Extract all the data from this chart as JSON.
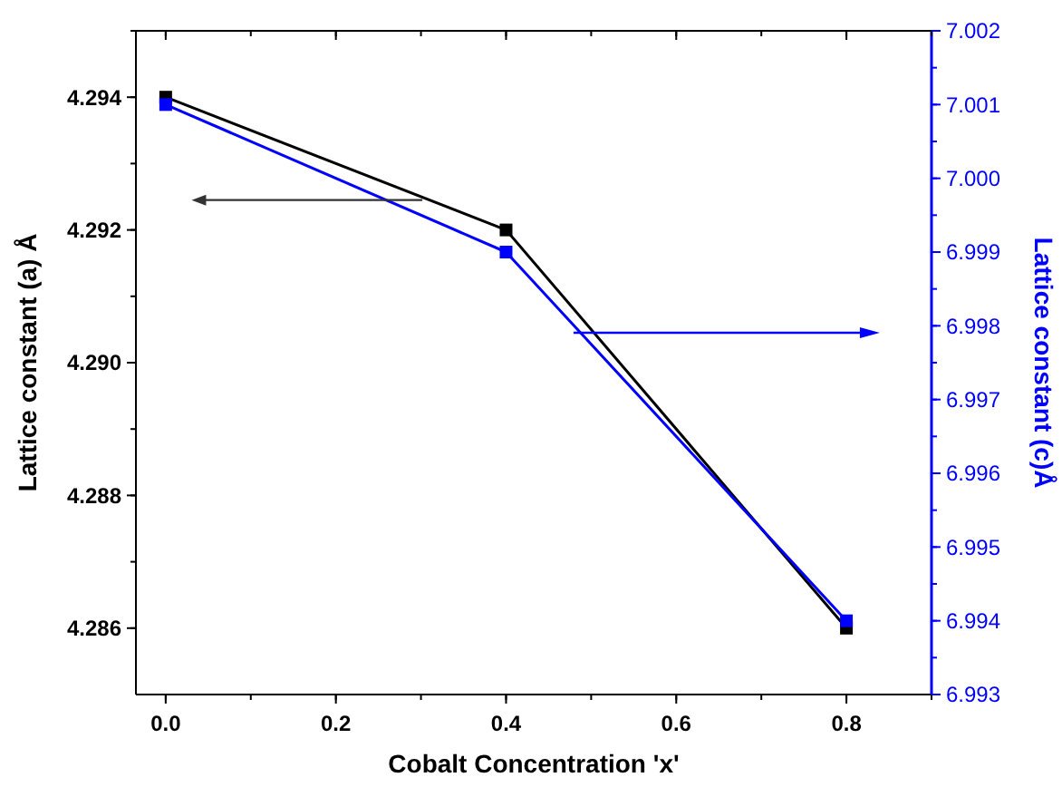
{
  "chart_data": {
    "type": "line",
    "xlabel": "Cobalt Concentration 'x'",
    "ylabel": "Lattice constant (a) Å",
    "y2label": "Lattice constant (c)Å",
    "x": [
      0,
      0.4,
      0.8
    ],
    "series": [
      {
        "color": "#000000",
        "values": [
          4.294,
          4.292,
          4.286
        ]
      },
      {
        "color": "#0000ff",
        "values": [
          7.001,
          6.999,
          6.994
        ],
        "axis": "y2"
      }
    ],
    "xlim": [
      -0.035,
      0.9
    ],
    "xticks": [
      {
        "value": 0,
        "label": "0.0"
      },
      0.2,
      0.4,
      0.6,
      0.8
    ],
    "ylim": [
      4.285,
      4.295
    ],
    "yticks": [
      4.286,
      4.288,
      {
        "value": 4.29,
        "label": "4.290"
      },
      4.292,
      4.294
    ],
    "y2lim": [
      6.993,
      7.002
    ],
    "y2ticks": [
      6.993,
      6.994,
      6.995,
      6.996,
      6.997,
      6.998,
      6.999,
      {
        "value": 7,
        "label": "7.000"
      },
      7.001,
      7.002
    ],
    "marker": "square",
    "line_style": "solid",
    "grid": false
  }
}
